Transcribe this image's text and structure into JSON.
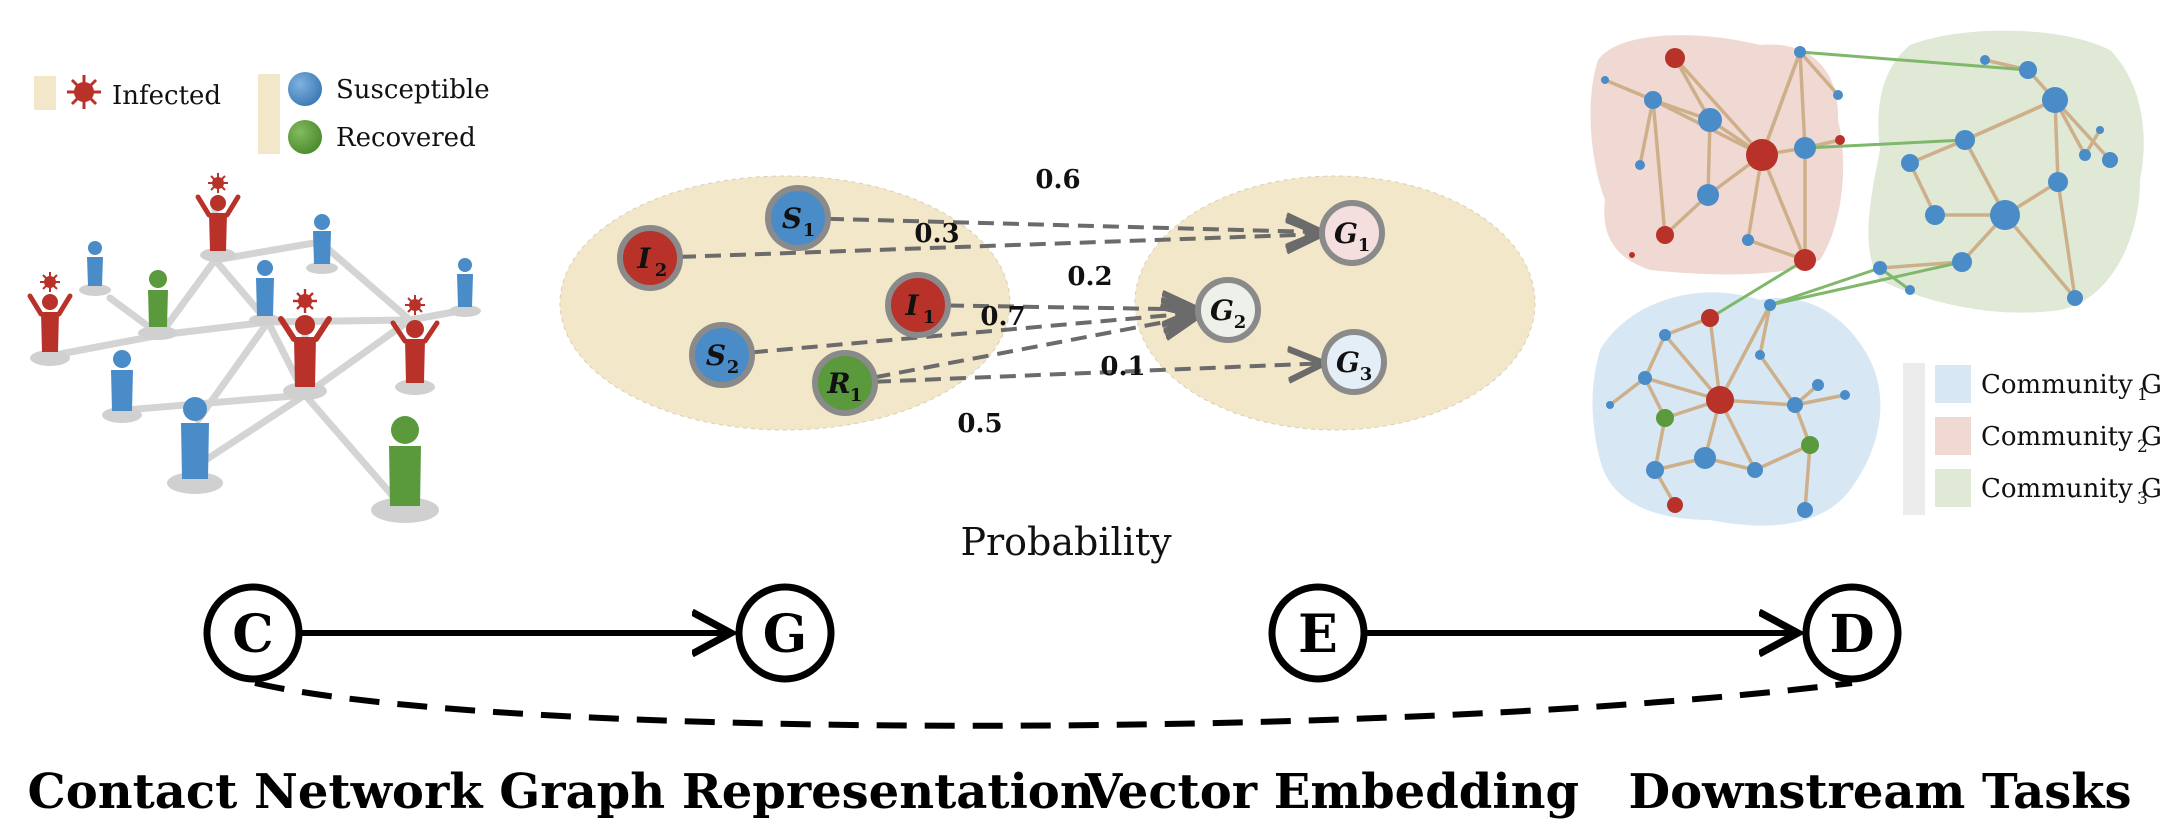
{
  "legend_left": {
    "infected": "Infected",
    "susceptible": "Susceptible",
    "recovered": "Recovered"
  },
  "legend_right": {
    "g1": "Community G",
    "g1_sub": "1",
    "g2": "Community G",
    "g2_sub": "2",
    "g3": "Community G",
    "g3_sub": "3"
  },
  "colors": {
    "infected": "#b8322a",
    "susceptible": "#4a8cc8",
    "recovered": "#5a9a3c",
    "region_beige": "#f3e7c9",
    "comm_blue": "#d7e7f4",
    "comm_red": "#f1d9d3",
    "comm_green": "#dfe9d6"
  },
  "middle": {
    "title": "Probability",
    "states": [
      {
        "id": "S1",
        "letter": "S",
        "sub": "1"
      },
      {
        "id": "I2",
        "letter": "I",
        "sub": "2"
      },
      {
        "id": "I1",
        "letter": "I",
        "sub": "1"
      },
      {
        "id": "S2",
        "letter": "S",
        "sub": "2"
      },
      {
        "id": "R1",
        "letter": "R",
        "sub": "1"
      }
    ],
    "groups": [
      {
        "id": "G1",
        "letter": "G",
        "sub": "1"
      },
      {
        "id": "G2",
        "letter": "G",
        "sub": "2"
      },
      {
        "id": "G3",
        "letter": "G",
        "sub": "3"
      }
    ],
    "edges": [
      {
        "from": "S1",
        "to": "G1",
        "label": "0.6"
      },
      {
        "from": "I2",
        "to": "G1",
        "label": "0.3"
      },
      {
        "from": "I1",
        "to": "G2",
        "label": "0.2"
      },
      {
        "from": "S2",
        "to": "G2",
        "label": "0.7"
      },
      {
        "from": "R1",
        "to": "G2",
        "label": "0.1"
      },
      {
        "from": "R1",
        "to": "G3",
        "label": "0.5"
      }
    ]
  },
  "pipeline": {
    "nodes": [
      "C",
      "G",
      "E",
      "D"
    ],
    "labels": [
      "Contact Network",
      "Graph Representation",
      "Vector Embedding",
      "Downstream Tasks"
    ]
  }
}
